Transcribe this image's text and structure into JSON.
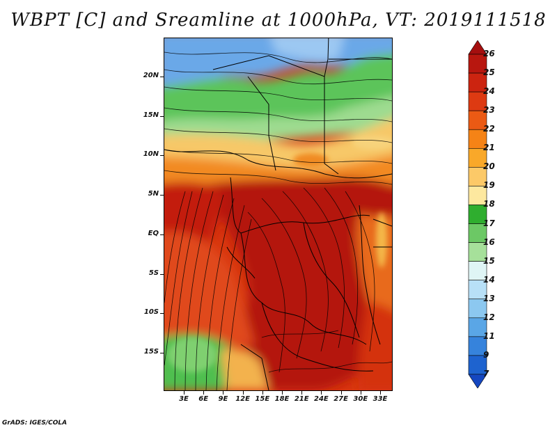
{
  "title": "WBPT [C] and Sreamline at 1000hPa, VT: 2019111518",
  "footer": "GrADS: IGES/COLA",
  "map": {
    "lat_labels": [
      "20N",
      "15N",
      "10N",
      "5N",
      "EQ",
      "5S",
      "10S",
      "15S"
    ],
    "lat_values": [
      20,
      15,
      10,
      5,
      0,
      -5,
      -10,
      -15
    ],
    "lon_labels": [
      "3E",
      "6E",
      "9E",
      "12E",
      "15E",
      "18E",
      "21E",
      "24E",
      "27E",
      "30E",
      "33E"
    ],
    "lon_values": [
      3,
      6,
      9,
      12,
      15,
      18,
      21,
      24,
      27,
      30,
      33
    ]
  },
  "colorbar": {
    "labels": [
      "26",
      "25",
      "24",
      "23",
      "22",
      "21",
      "20",
      "19",
      "18",
      "17",
      "16",
      "15",
      "14",
      "13",
      "12",
      "11",
      "9",
      "7"
    ],
    "colors": [
      "#a50f0f",
      "#b8170f",
      "#cc2410",
      "#dd3a12",
      "#eb5a14",
      "#f58316",
      "#f9a829",
      "#fcc968",
      "#fde89f",
      "#2fae2f",
      "#6cc865",
      "#a6e09a",
      "#dff5f5",
      "#b8e0f7",
      "#8cc8f0",
      "#5aa6e6",
      "#3683dc",
      "#1e63cf",
      "#1547c0"
    ]
  }
}
